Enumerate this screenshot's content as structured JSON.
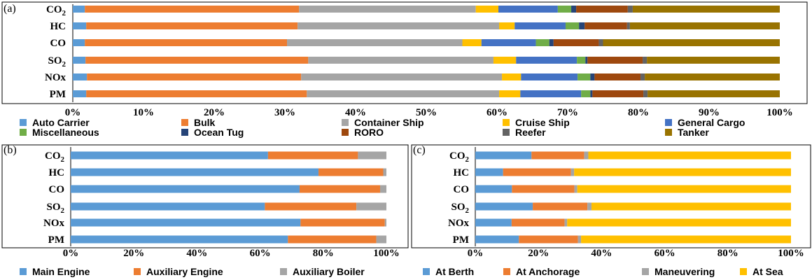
{
  "chart_data": [
    {
      "panel_label": "(a)",
      "type": "bar",
      "orientation": "horizontal",
      "stacked": "percent",
      "categories": [
        "CO2",
        "HC",
        "CO",
        "SO2",
        "NOx",
        "PM"
      ],
      "category_labels": [
        {
          "main": "CO",
          "sub": "2"
        },
        {
          "main": "HC",
          "sub": ""
        },
        {
          "main": "CO",
          "sub": ""
        },
        {
          "main": "SO",
          "sub": "2"
        },
        {
          "main": "NOx",
          "sub": ""
        },
        {
          "main": "PM",
          "sub": ""
        }
      ],
      "xticks": [
        "0%",
        "10%",
        "20%",
        "30%",
        "40%",
        "50%",
        "60%",
        "70%",
        "80%",
        "90%",
        "100%"
      ],
      "xlim": [
        0,
        100
      ],
      "grid": false,
      "legend_position": "bottom",
      "series": [
        {
          "name": "Auto Carrier",
          "color": "#5b9bd5",
          "values": [
            1.7,
            1.9,
            1.7,
            1.8,
            2.0,
            1.9
          ]
        },
        {
          "name": "Bulk",
          "color": "#ed7d31",
          "values": [
            30.3,
            29.9,
            28.6,
            31.5,
            30.3,
            31.2
          ]
        },
        {
          "name": "Container Ship",
          "color": "#a5a5a5",
          "values": [
            25.0,
            28.5,
            24.8,
            26.2,
            28.4,
            27.2
          ]
        },
        {
          "name": "Cruise Ship",
          "color": "#ffc000",
          "values": [
            3.2,
            2.2,
            2.7,
            3.2,
            2.7,
            3.0
          ]
        },
        {
          "name": "General Cargo",
          "color": "#4472c4",
          "values": [
            8.4,
            7.2,
            7.7,
            8.6,
            8.0,
            8.6
          ]
        },
        {
          "name": "Miscellaneous",
          "color": "#70ad47",
          "values": [
            1.9,
            1.9,
            1.9,
            1.2,
            1.8,
            1.3
          ]
        },
        {
          "name": "Ocean Tug",
          "color": "#264478",
          "values": [
            0.7,
            0.8,
            0.6,
            0.3,
            0.6,
            0.3
          ]
        },
        {
          "name": "RORO",
          "color": "#9e480e",
          "values": [
            7.3,
            6.0,
            6.4,
            7.8,
            6.5,
            7.2
          ]
        },
        {
          "name": "Reefer",
          "color": "#636363",
          "values": [
            0.7,
            0.4,
            0.6,
            0.6,
            0.6,
            0.6
          ]
        },
        {
          "name": "Tanker",
          "color": "#997300",
          "values": [
            20.8,
            21.2,
            25.0,
            18.8,
            19.1,
            18.7
          ]
        }
      ]
    },
    {
      "panel_label": "(b)",
      "type": "bar",
      "orientation": "horizontal",
      "stacked": "percent",
      "categories": [
        "CO2",
        "HC",
        "CO",
        "SO2",
        "NOx",
        "PM"
      ],
      "category_labels": [
        {
          "main": "CO",
          "sub": "2"
        },
        {
          "main": "HC",
          "sub": ""
        },
        {
          "main": "CO",
          "sub": ""
        },
        {
          "main": "SO",
          "sub": "2"
        },
        {
          "main": "NOx",
          "sub": ""
        },
        {
          "main": "PM",
          "sub": ""
        }
      ],
      "xticks": [
        "0%",
        "20%",
        "40%",
        "60%",
        "80%",
        "100%"
      ],
      "xlim": [
        0,
        100
      ],
      "grid": false,
      "legend_position": "bottom",
      "series": [
        {
          "name": "Main Engine",
          "color": "#5b9bd5",
          "values": [
            62.5,
            78.5,
            72.5,
            61.5,
            72.8,
            68.8
          ]
        },
        {
          "name": "Auxiliary Engine",
          "color": "#ed7d31",
          "values": [
            28.5,
            20.5,
            25.5,
            29.0,
            26.7,
            28.0
          ]
        },
        {
          "name": "Auxiliary Boiler",
          "color": "#a5a5a5",
          "values": [
            9.0,
            1.0,
            2.0,
            9.5,
            0.5,
            3.2
          ]
        }
      ]
    },
    {
      "panel_label": "(c)",
      "type": "bar",
      "orientation": "horizontal",
      "stacked": "percent",
      "categories": [
        "CO2",
        "HC",
        "CO",
        "SO2",
        "NOx",
        "PM"
      ],
      "category_labels": [
        {
          "main": "CO",
          "sub": "2"
        },
        {
          "main": "HC",
          "sub": ""
        },
        {
          "main": "CO",
          "sub": ""
        },
        {
          "main": "SO",
          "sub": "2"
        },
        {
          "main": "NOx",
          "sub": ""
        },
        {
          "main": "PM",
          "sub": ""
        }
      ],
      "xticks": [
        "0%",
        "20%",
        "40%",
        "60%",
        "80%",
        "100%"
      ],
      "xlim": [
        0,
        100
      ],
      "grid": false,
      "legend_position": "bottom",
      "series": [
        {
          "name": "At Berth",
          "color": "#5b9bd5",
          "values": [
            17.8,
            8.8,
            11.6,
            18.2,
            11.5,
            13.8
          ]
        },
        {
          "name": "At Anchorage",
          "color": "#ed7d31",
          "values": [
            16.7,
            21.5,
            19.8,
            17.3,
            16.8,
            18.7
          ]
        },
        {
          "name": "Maneuvering",
          "color": "#a5a5a5",
          "values": [
            1.3,
            1.0,
            0.9,
            1.3,
            0.8,
            1.0
          ]
        },
        {
          "name": "At Sea",
          "color": "#ffc000",
          "values": [
            64.2,
            68.7,
            67.7,
            63.2,
            70.9,
            66.5
          ]
        }
      ]
    }
  ]
}
